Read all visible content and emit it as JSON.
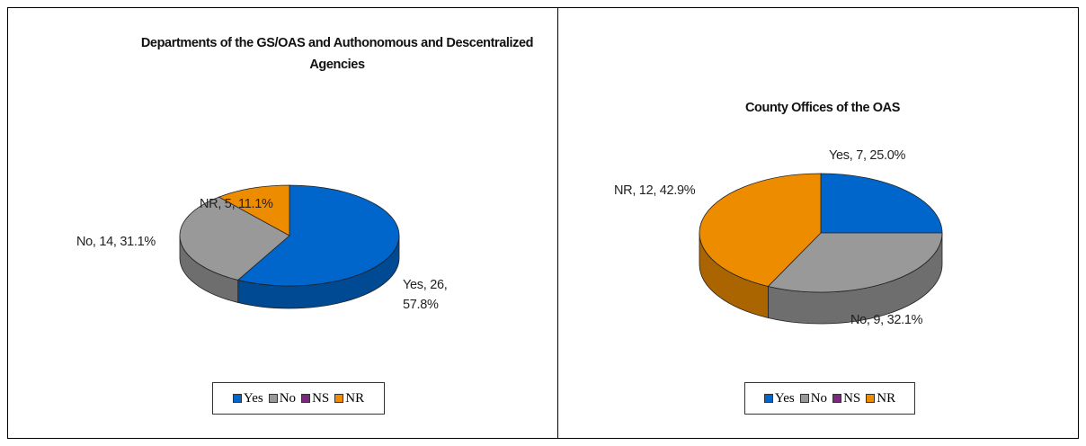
{
  "chart_data": [
    {
      "type": "pie",
      "title": "Departments of the GS/OAS and Authonomous and Descentralized Agencies",
      "categories": [
        "Yes",
        "No",
        "NS",
        "NR"
      ],
      "values": [
        26,
        14,
        0,
        5
      ],
      "value_labels": [
        "Yes, 26, 57.8%",
        "No, 14, 31.1%",
        null,
        "NR, 5, 11.1%"
      ],
      "colors": [
        "#0066cc",
        "#999999",
        "#7a2a7a",
        "#ee8c00"
      ],
      "legend": "bottom"
    },
    {
      "type": "pie",
      "title": "County Offices of  the OAS",
      "categories": [
        "Yes",
        "No",
        "NS",
        "NR"
      ],
      "values": [
        7,
        9,
        0,
        12
      ],
      "value_labels": [
        "Yes, 7, 25.0%",
        "No, 9, 32.1%",
        null,
        "NR, 12, 42.9%"
      ],
      "colors": [
        "#0066cc",
        "#999999",
        "#7a2a7a",
        "#ee8c00"
      ],
      "legend": "bottom"
    }
  ]
}
